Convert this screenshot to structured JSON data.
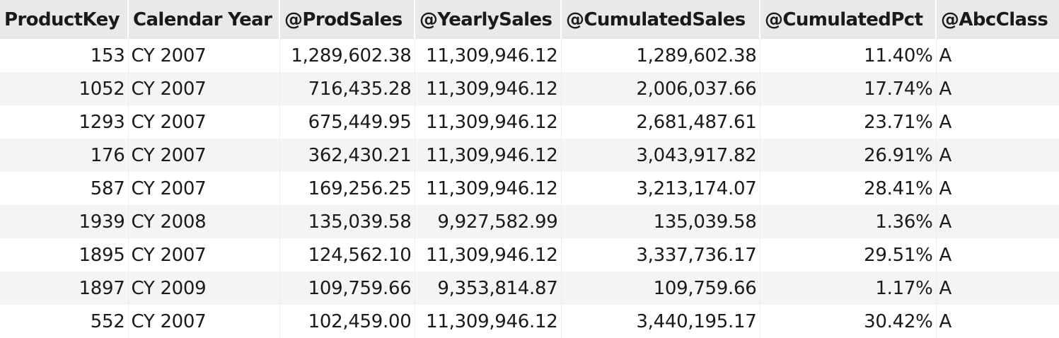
{
  "table": {
    "headers": [
      "ProductKey",
      "Calendar Year",
      "@ProdSales",
      "@YearlySales",
      "@CumulatedSales",
      "@CumulatedPct",
      "@AbcClass"
    ],
    "rows": [
      [
        "153",
        "CY 2007",
        "1,289,602.38",
        "11,309,946.12",
        "1,289,602.38",
        "11.40%",
        "A"
      ],
      [
        "1052",
        "CY 2007",
        "716,435.28",
        "11,309,946.12",
        "2,006,037.66",
        "17.74%",
        "A"
      ],
      [
        "1293",
        "CY 2007",
        "675,449.95",
        "11,309,946.12",
        "2,681,487.61",
        "23.71%",
        "A"
      ],
      [
        "176",
        "CY 2007",
        "362,430.21",
        "11,309,946.12",
        "3,043,917.82",
        "26.91%",
        "A"
      ],
      [
        "587",
        "CY 2007",
        "169,256.25",
        "11,309,946.12",
        "3,213,174.07",
        "28.41%",
        "A"
      ],
      [
        "1939",
        "CY 2008",
        "135,039.58",
        "9,927,582.99",
        "135,039.58",
        "1.36%",
        "A"
      ],
      [
        "1895",
        "CY 2007",
        "124,562.10",
        "11,309,946.12",
        "3,337,736.17",
        "29.51%",
        "A"
      ],
      [
        "1897",
        "CY 2009",
        "109,759.66",
        "9,353,814.87",
        "109,759.66",
        "1.17%",
        "A"
      ],
      [
        "552",
        "CY 2007",
        "102,459.00",
        "11,309,946.12",
        "3,440,195.17",
        "30.42%",
        "A"
      ]
    ]
  },
  "colors": {
    "header_bg": "#e9e9e9",
    "row_alt_bg": "#f4f4f4",
    "row_bg": "#ffffff",
    "text": "#1a1a1a"
  }
}
